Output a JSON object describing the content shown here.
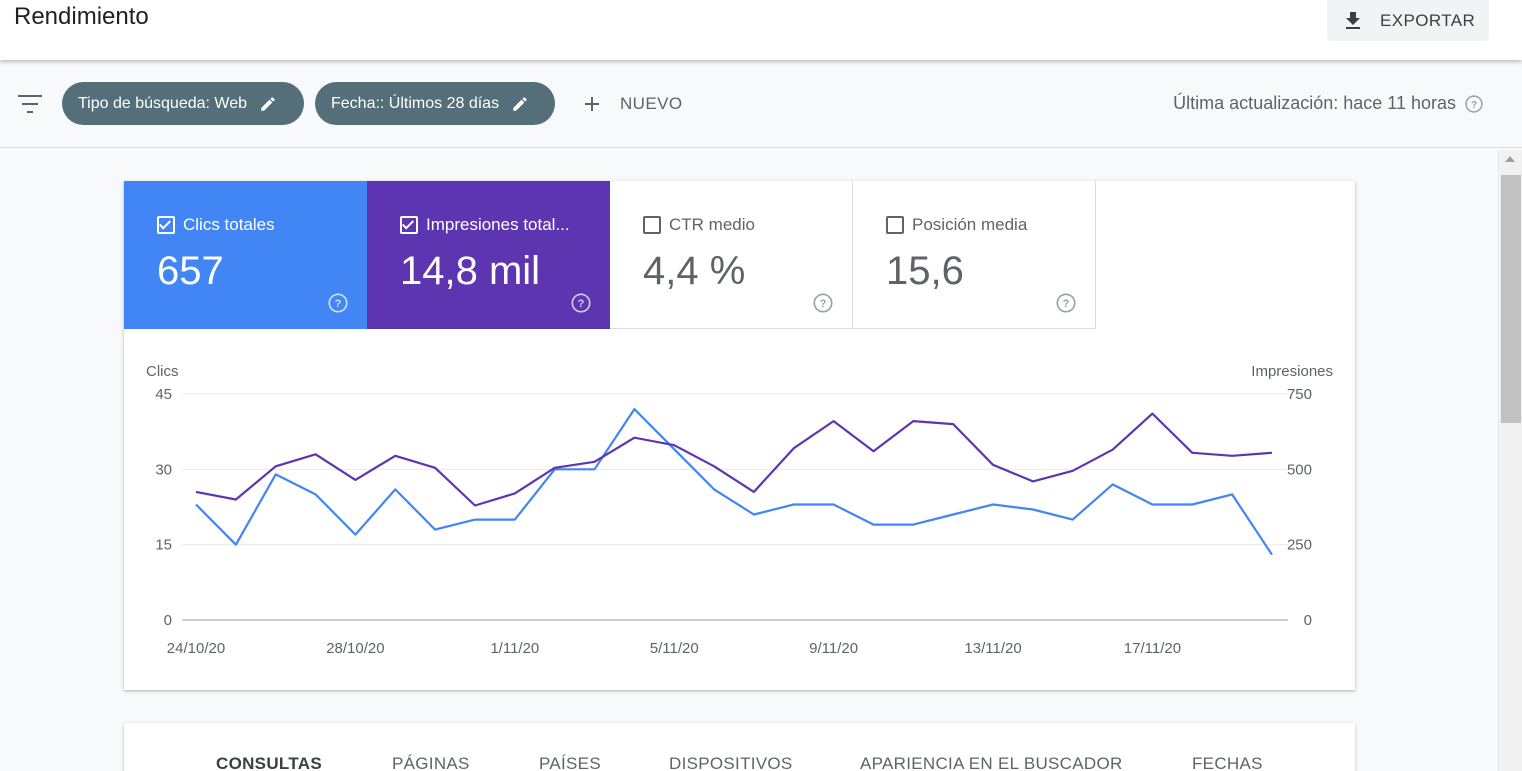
{
  "header": {
    "title": "Rendimiento",
    "export_label": "EXPORTAR"
  },
  "filters": {
    "chips": [
      {
        "label": "Tipo de búsqueda: Web"
      },
      {
        "label": "Fecha:: Últimos 28 días"
      }
    ],
    "new_label": "NUEVO",
    "last_update": "Última actualización: hace 11 horas"
  },
  "metrics": [
    {
      "label": "Clics totales",
      "value": "657",
      "checked": true,
      "color": "#4285f4"
    },
    {
      "label": "Impresiones total...",
      "value": "14,8 mil",
      "checked": true,
      "color": "#5e35b1"
    },
    {
      "label": "CTR medio",
      "value": "4,4 %",
      "checked": false
    },
    {
      "label": "Posición media",
      "value": "15,6",
      "checked": false
    }
  ],
  "chart_data": {
    "type": "line",
    "ylabel_left": "Clics",
    "ylabel_right": "Impresiones",
    "ylim_left": [
      0,
      45
    ],
    "ylim_right": [
      0,
      750
    ],
    "yticks_left": [
      "0",
      "15",
      "30",
      "45"
    ],
    "yticks_right": [
      "0",
      "250",
      "500",
      "750"
    ],
    "x_tick_labels": [
      "24/10/20",
      "28/10/20",
      "1/11/20",
      "5/11/20",
      "9/11/20",
      "13/11/20",
      "17/11/20"
    ],
    "grid": true,
    "series": [
      {
        "name": "Clics",
        "axis": "left",
        "color": "#4285f4",
        "values": [
          23,
          15,
          29,
          25,
          17,
          26,
          18,
          20,
          20,
          30,
          30,
          42,
          34,
          26,
          21,
          23,
          23,
          19,
          19,
          21,
          23,
          22,
          20,
          27,
          23,
          23,
          25,
          13
        ]
      },
      {
        "name": "Impresiones",
        "axis": "right",
        "color": "#5e35b1",
        "values": [
          425,
          400,
          510,
          550,
          465,
          545,
          505,
          380,
          420,
          505,
          525,
          605,
          580,
          510,
          425,
          570,
          660,
          560,
          660,
          650,
          515,
          460,
          495,
          565,
          685,
          555,
          545,
          555
        ]
      }
    ]
  },
  "tabs": [
    "CONSULTAS",
    "PÁGINAS",
    "PAÍSES",
    "DISPOSITIVOS",
    "APARIENCIA EN EL BUSCADOR",
    "FECHAS"
  ]
}
